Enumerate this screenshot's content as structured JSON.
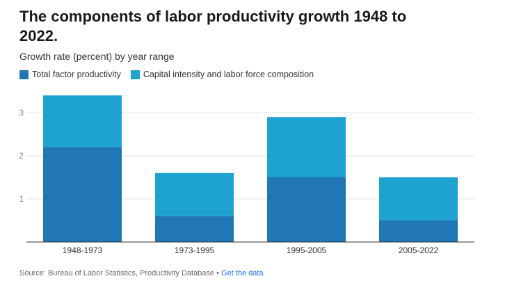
{
  "header": {
    "title": "The components of labor productivity growth 1948 to 2022.",
    "subtitle": "Growth rate (percent) by year range"
  },
  "legend": {
    "items": [
      {
        "label": "Total factor productivity",
        "color": "#2176b5"
      },
      {
        "label": "Capital intensity and labor force composition",
        "color": "#1ea3d1"
      }
    ]
  },
  "footer": {
    "source": "Source: Bureau of Labor Statistics, Productivity Database",
    "separator": " • ",
    "link": "Get the data"
  },
  "chart_data": {
    "type": "bar",
    "stacked": true,
    "title": "The components of labor productivity growth 1948 to 2022.",
    "subtitle": "Growth rate (percent) by year range",
    "categories": [
      "1948-1973",
      "1973-1995",
      "1995-2005",
      "2005-2022"
    ],
    "series": [
      {
        "name": "Total factor productivity",
        "values": [
          2.2,
          0.6,
          1.5,
          0.5
        ],
        "color": "#2176b5"
      },
      {
        "name": "Capital intensity and labor force composition",
        "values": [
          1.2,
          1.0,
          1.4,
          1.0
        ],
        "color": "#1ea3d1"
      }
    ],
    "yticks": [
      1,
      2,
      3
    ],
    "ylim": [
      0,
      3.5
    ],
    "grid": true,
    "legend_position": "top-left"
  }
}
